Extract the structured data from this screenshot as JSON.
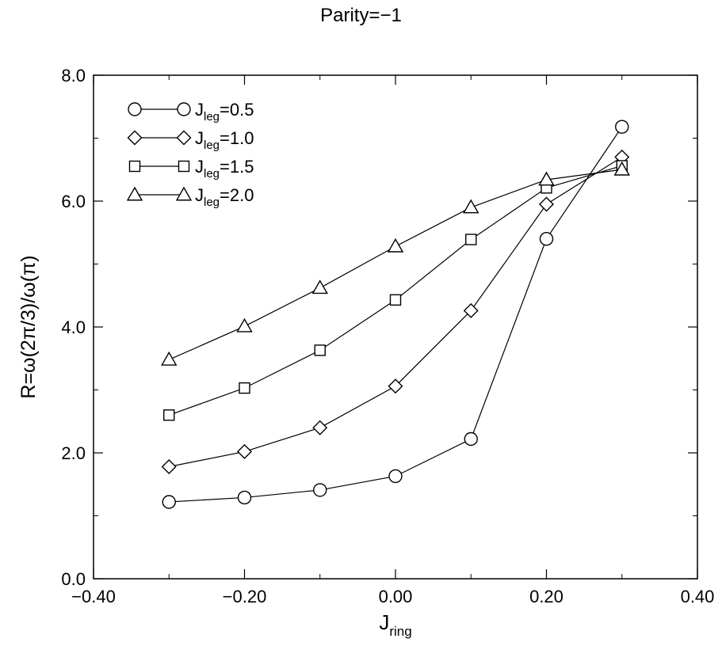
{
  "chart_data": {
    "type": "line",
    "title": "Parity=−1",
    "xlabel": {
      "main": "J",
      "sub": "ring"
    },
    "ylabel": "R=ω(2π/3)/ω(π)",
    "xlim": [
      -0.4,
      0.4
    ],
    "ylim": [
      0.0,
      8.0
    ],
    "xticks": [
      -0.4,
      -0.2,
      0.0,
      0.2,
      0.4
    ],
    "xtick_labels": [
      "−0.40",
      "−0.20",
      "0.00",
      "0.20",
      "0.40"
    ],
    "yticks": [
      0.0,
      2.0,
      4.0,
      6.0,
      8.0
    ],
    "ytick_labels": [
      "0.0",
      "2.0",
      "4.0",
      "6.0",
      "8.0"
    ],
    "grid": false,
    "legend_position": "top-left",
    "x": [
      -0.3,
      -0.2,
      -0.1,
      0.0,
      0.1,
      0.2,
      0.3
    ],
    "series": [
      {
        "name": "J_leg=0.5",
        "legend_main": "J",
        "legend_sub": "leg",
        "legend_value": "=0.5",
        "marker": "circle",
        "values": [
          1.22,
          1.29,
          1.41,
          1.63,
          2.22,
          5.4,
          7.18
        ]
      },
      {
        "name": "J_leg=1.0",
        "legend_main": "J",
        "legend_sub": "leg",
        "legend_value": "=1.0",
        "marker": "diamond",
        "values": [
          1.78,
          2.02,
          2.4,
          3.06,
          4.26,
          5.95,
          6.7
        ]
      },
      {
        "name": "J_leg=1.5",
        "legend_main": "J",
        "legend_sub": "leg",
        "legend_value": "=1.5",
        "marker": "square",
        "values": [
          2.6,
          3.03,
          3.63,
          4.43,
          5.39,
          6.21,
          6.56
        ]
      },
      {
        "name": "J_leg=2.0",
        "legend_main": "J",
        "legend_sub": "leg",
        "legend_value": "=2.0",
        "marker": "triangle",
        "values": [
          3.48,
          4.01,
          4.62,
          5.28,
          5.9,
          6.34,
          6.5
        ]
      }
    ],
    "colors": {
      "line": "#000000",
      "background": "#ffffff"
    }
  }
}
